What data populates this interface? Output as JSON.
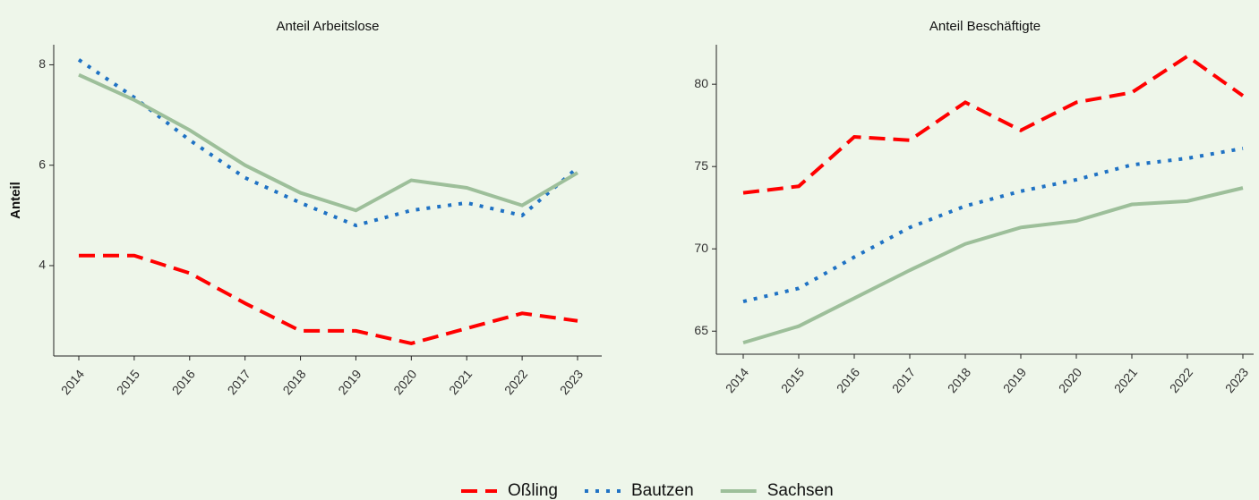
{
  "chart_data": [
    {
      "type": "line",
      "title": "Anteil Arbeitslose",
      "y_label": "Anteil",
      "categories": [
        "2014",
        "2015",
        "2016",
        "2017",
        "2018",
        "2019",
        "2020",
        "2021",
        "2022",
        "2023"
      ],
      "ylim": [
        2.2,
        8.4
      ],
      "yticks": [
        4,
        6,
        8
      ],
      "series": [
        {
          "name": "Oßling",
          "color": "#ff0000",
          "dash": "dashed",
          "values": [
            4.2,
            4.2,
            3.85,
            3.25,
            2.7,
            2.7,
            2.45,
            2.75,
            3.05,
            2.9
          ]
        },
        {
          "name": "Bautzen",
          "color": "#1f72c4",
          "dash": "dotted",
          "values": [
            8.1,
            7.35,
            6.5,
            5.75,
            5.25,
            4.8,
            5.1,
            5.25,
            5.0,
            5.95
          ]
        },
        {
          "name": "Sachsen",
          "color": "#9dbf9a",
          "dash": "solid",
          "values": [
            7.8,
            7.3,
            6.7,
            6.0,
            5.45,
            5.1,
            5.7,
            5.55,
            5.2,
            5.85
          ]
        }
      ]
    },
    {
      "type": "line",
      "title": "Anteil Beschäftigte",
      "categories": [
        "2014",
        "2015",
        "2016",
        "2017",
        "2018",
        "2019",
        "2020",
        "2021",
        "2022",
        "2023"
      ],
      "ylim": [
        63.6,
        82.4
      ],
      "yticks": [
        65,
        70,
        75,
        80
      ],
      "series": [
        {
          "color": "#ff0000",
          "dash": "dashed",
          "values": [
            73.4,
            73.8,
            76.8,
            76.6,
            78.9,
            77.2,
            78.9,
            79.5,
            81.7,
            79.3
          ]
        },
        {
          "color": "#1f72c4",
          "dash": "dotted",
          "values": [
            66.8,
            67.6,
            69.5,
            71.3,
            72.6,
            73.5,
            74.2,
            75.1,
            75.5,
            76.1
          ]
        },
        {
          "color": "#9dbf9a",
          "dash": "solid",
          "values": [
            64.3,
            65.3,
            67.0,
            68.7,
            70.3,
            71.3,
            71.7,
            72.7,
            72.9,
            73.7
          ]
        }
      ]
    }
  ]
}
